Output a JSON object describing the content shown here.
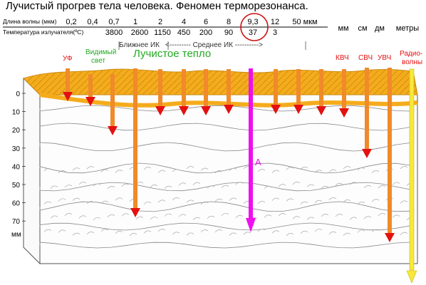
{
  "title": "Лучистый прогрев тела человека. Феномен терморезонанса.",
  "header": {
    "wavelength_label": "Длина волны (мкм)",
    "temperature_label": "Температура излучателя(ºC)",
    "wavelengths": [
      "0,2",
      "0,4",
      "0,7",
      "1",
      "2",
      "4",
      "6",
      "8",
      "9,3",
      "12",
      "50 мкм"
    ],
    "temperatures": [
      "3800",
      "2600",
      "1150",
      "450",
      "200",
      "90",
      "37",
      "3"
    ],
    "units": [
      "мм",
      "см",
      "дм",
      "метры"
    ],
    "bands": {
      "near_ir": "Ближнее ИК",
      "mid_ir": "<---------  Среднее   ИК  ---------->"
    },
    "radiant_heat": "Лучистое тепло"
  },
  "labels": {
    "uv": "УФ",
    "visible": "Видимый свет",
    "kvch": "КВЧ",
    "svch": "СВЧ",
    "uvch": "УВЧ",
    "radio": "Радио- волны",
    "resonance": "А"
  },
  "depth_scale": {
    "ticks": [
      "0",
      "10",
      "20",
      "30",
      "40",
      "50",
      "60",
      "70"
    ],
    "unit": "мм"
  },
  "colors": {
    "skin": "#f5ac1c",
    "arrow_orange": "#f08a2a",
    "arrow_head": "#e41010",
    "resonance": "#ee10ee",
    "radio": "#f7e83a",
    "circle": "#cc1111"
  }
}
